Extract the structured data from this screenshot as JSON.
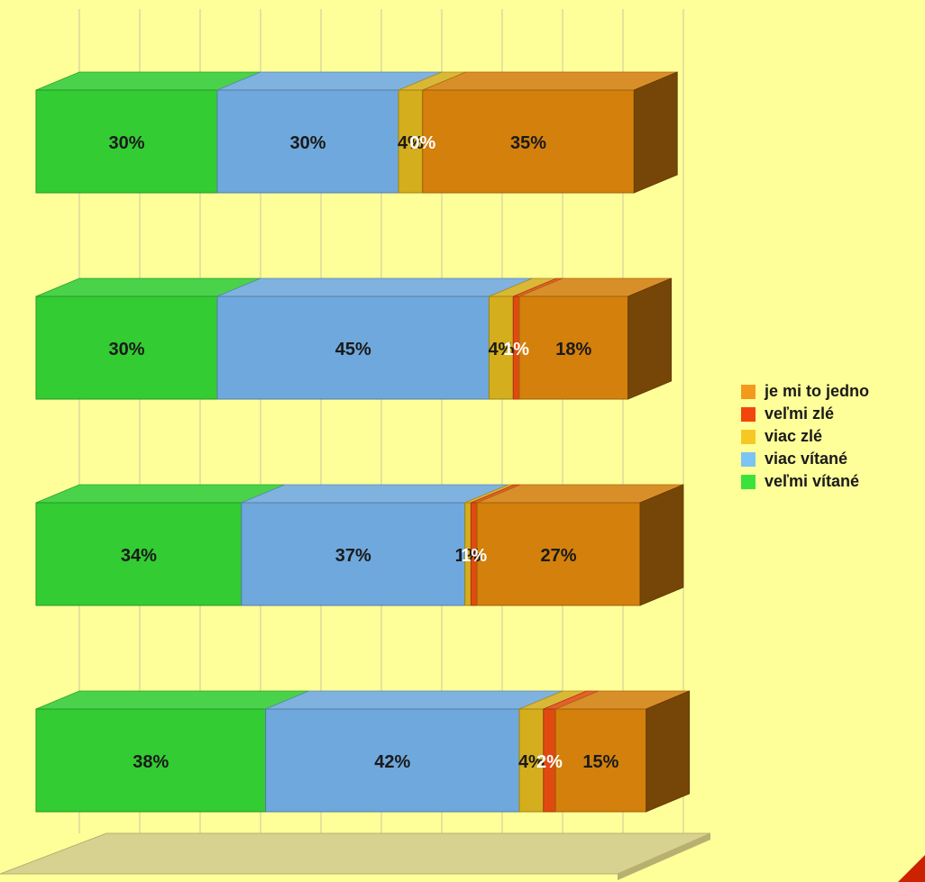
{
  "chart_data": {
    "type": "bar",
    "orientation": "horizontal",
    "stacked": true,
    "normalized_100": true,
    "three_d": true,
    "grid": true,
    "legend_position": "right",
    "xlim": [
      0,
      100
    ],
    "rows": [
      {
        "values": [
          30,
          30,
          4,
          0,
          35
        ],
        "labels": [
          "30%",
          "30%",
          "4%",
          "0%",
          "35%"
        ]
      },
      {
        "values": [
          30,
          45,
          4,
          1,
          18
        ],
        "labels": [
          "30%",
          "45%",
          "4%",
          "1%",
          "18%"
        ]
      },
      {
        "values": [
          34,
          37,
          1,
          1,
          27
        ],
        "labels": [
          "34%",
          "37%",
          "1%",
          "1%",
          "27%"
        ]
      },
      {
        "values": [
          38,
          42,
          4,
          2,
          15
        ],
        "labels": [
          "38%",
          "42%",
          "4%",
          "2%",
          "15%"
        ]
      }
    ],
    "series": [
      {
        "name": "veľmi vítané",
        "color": "#33CC33",
        "label_color": "#1a1a1a"
      },
      {
        "name": "viac vítané",
        "color": "#6FA8DC",
        "label_color": "#1a1a1a"
      },
      {
        "name": "viac zlé",
        "color": "#D4AE1C",
        "label_color": "#1a1a1a"
      },
      {
        "name": "veľmi zlé",
        "color": "#E04A10",
        "label_color": "#FFFFFF"
      },
      {
        "name": "je mi to jedno",
        "color": "#D4800C",
        "label_color": "#1a1a1a"
      }
    ],
    "legend": [
      {
        "label": "je mi to jedno",
        "color": "#F39A1E"
      },
      {
        "label": "veľmi zlé",
        "color": "#F0460C"
      },
      {
        "label": "viac zlé",
        "color": "#F7C823"
      },
      {
        "label": "viac vítané",
        "color": "#7CC4F4"
      },
      {
        "label": "veľmi vítané",
        "color": "#3CE23C"
      }
    ],
    "colors": {
      "background": "#FFFF99",
      "floor": "#D8D290",
      "gridline": "#C8C8A0",
      "corner_accent": "#CC2200"
    }
  }
}
